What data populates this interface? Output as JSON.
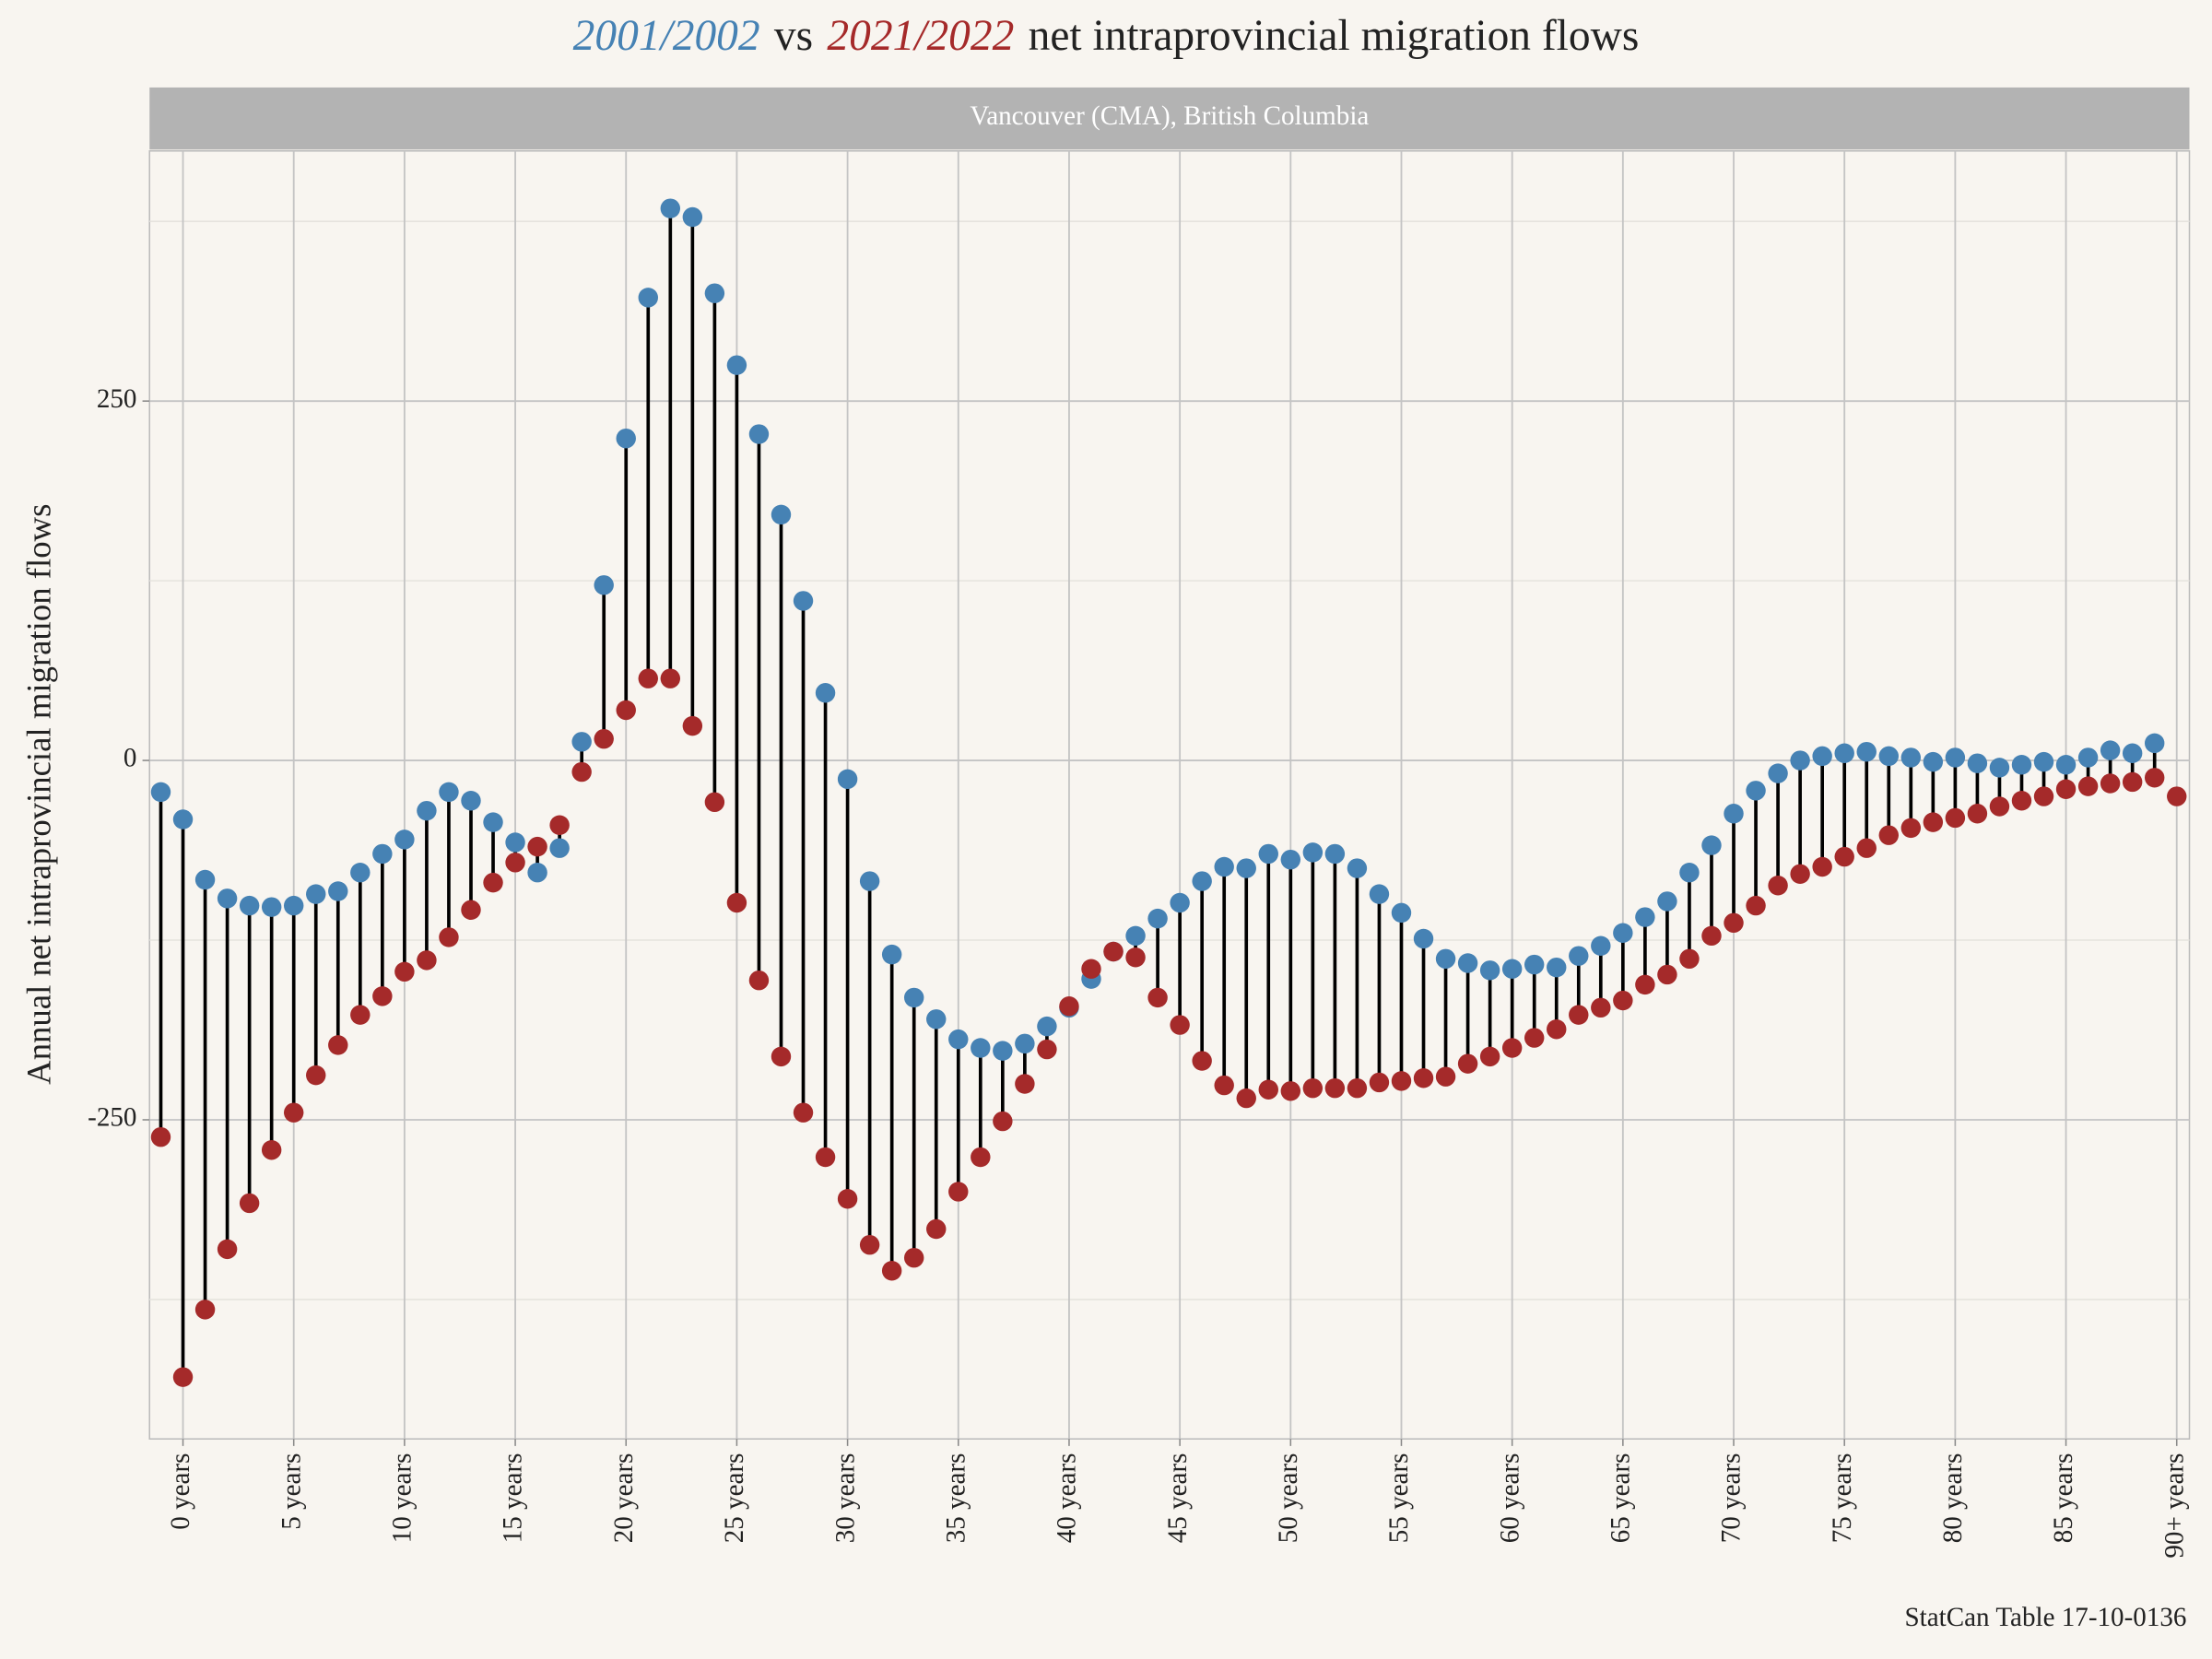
{
  "chart_data": {
    "type": "dumbbell",
    "title_connector": "vs",
    "title_rest": "net intraprovincial migration flows",
    "facet": "Vancouver (CMA), British Columbia",
    "y_label": "Annual net intraprovincial migration flows",
    "caption": "StatCan Table 17-10-0136",
    "categories": [
      null,
      "0 years",
      null,
      null,
      null,
      null,
      "5 years",
      null,
      null,
      null,
      null,
      "10 years",
      null,
      null,
      null,
      null,
      "15 years",
      null,
      null,
      null,
      null,
      "20 years",
      null,
      null,
      null,
      null,
      "25 years",
      null,
      null,
      null,
      null,
      "30 years",
      null,
      null,
      null,
      null,
      "35 years",
      null,
      null,
      null,
      null,
      "40 years",
      null,
      null,
      null,
      null,
      "45 years",
      null,
      null,
      null,
      null,
      "50 years",
      null,
      null,
      null,
      null,
      "55 years",
      null,
      null,
      null,
      null,
      "60 years",
      null,
      null,
      null,
      null,
      "65 years",
      null,
      null,
      null,
      null,
      "70 years",
      null,
      null,
      null,
      null,
      "75 years",
      null,
      null,
      null,
      null,
      "80 years",
      null,
      null,
      null,
      null,
      "85 years",
      null,
      null,
      null,
      null,
      "90+ years"
    ],
    "series": [
      {
        "name": "2001/2002",
        "color": "#4682b4",
        "values": [
          -22,
          -41,
          -83,
          -96,
          -101,
          -102,
          -101,
          -93,
          -91,
          -78,
          -65,
          -55,
          -35,
          -22,
          -28,
          -43,
          -57,
          -78,
          -61,
          13,
          122,
          224,
          322,
          384,
          378,
          325,
          275,
          227,
          171,
          111,
          47,
          -13,
          -84,
          -135,
          -165,
          -180,
          -194,
          -200,
          -202,
          -197,
          -185,
          -172,
          -152,
          -133,
          -122,
          -110,
          -99,
          -84,
          -74,
          -75,
          -65,
          -69,
          -64,
          -65,
          -75,
          -93,
          -106,
          -124,
          -138,
          -141,
          -146,
          -145,
          -142,
          -144,
          -136,
          -129,
          -120,
          -109,
          -98,
          -78,
          -59,
          -37,
          -21,
          -9,
          0,
          3,
          5,
          6,
          3,
          2,
          -1,
          2,
          -2,
          -5,
          -3,
          -1,
          -3,
          2,
          7,
          5,
          12,
          null
        ]
      },
      {
        "name": "2021/2022",
        "color": "#a52a2a",
        "values": [
          -262,
          -429,
          -382,
          -340,
          -308,
          -271,
          -245,
          -219,
          -198,
          -177,
          -164,
          -147,
          -139,
          -123,
          -104,
          -85,
          -71,
          -60,
          -45,
          -8,
          15,
          35,
          57,
          57,
          24,
          -29,
          -99,
          -153,
          -206,
          -245,
          -276,
          -305,
          -337,
          -355,
          -346,
          -326,
          -300,
          -276,
          -251,
          -225,
          -201,
          -171,
          -145,
          -133,
          -137,
          -165,
          -184,
          -209,
          -226,
          -235,
          -229,
          -230,
          -228,
          -228,
          -228,
          -224,
          -223,
          -221,
          -220,
          -211,
          -206,
          -200,
          -193,
          -187,
          -177,
          -172,
          -167,
          -156,
          -149,
          -138,
          -122,
          -113,
          -101,
          -87,
          -79,
          -74,
          -67,
          -61,
          -52,
          -47,
          -43,
          -40,
          -37,
          -32,
          -28,
          -25,
          -20,
          -18,
          -16,
          -15,
          -12,
          -25
        ]
      }
    ],
    "ylim": [
      -472,
      424
    ],
    "yticks": [
      -250,
      0,
      250
    ],
    "yminor_ticks": [
      -375,
      -125,
      125,
      375
    ],
    "grid": true
  }
}
